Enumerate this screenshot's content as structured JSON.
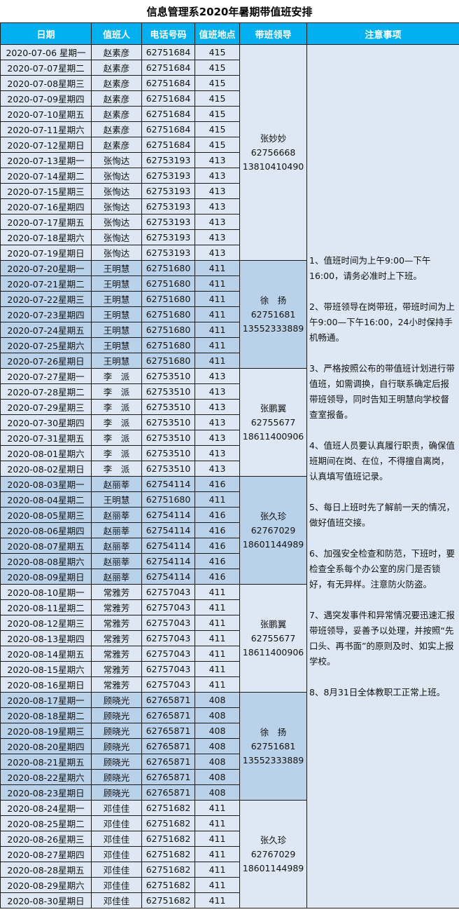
{
  "title": "信息管理系2020年暑期带值班安排",
  "headers": [
    "日期",
    "值班人",
    "电话号码",
    "值班地点",
    "带班领导",
    "注意事项"
  ],
  "notes": "1、值班时间为上午9:00—下午16:00，请务必准时上下班。\n\n2、带班领导在岗带班，带班时间为上午9:00—下午16:00，24小时保持手机畅通。\n\n3、严格按照公布的带值班计划进行带值班，如需调换，自行联系确定后报带班领导，同时告知王明慧向学校督查室报备。\n\n4、值班人员要认真履行职责，确保值班期间在岗、在位，不得擅自离岗，认真填写值班记录。\n\n5、每日上班时先了解前一天的情况，做好值班交接。\n\n6、加强安全检查和防范，下班时，要检查全系每个办公室的房门是否锁好，有无异样。注意防火防盗。\n\n7、遇突发事件和异常情况要迅速汇报带班领导，妥善予以处理，并按照“先口头、再书面”的原则及时、如实上报学校。\n\n8、8月31日全体教职工正常上班。",
  "colors": {
    "header": "#00b0f0",
    "light": "#dde8f4",
    "blue": "#b9d2ea"
  },
  "groups": [
    {
      "leader": {
        "name": "张妙妙",
        "phone": "62756668",
        "mobile": "13810410490"
      },
      "days": [
        [
          "2020-07-06 星期一",
          "赵素彦",
          "62751684",
          "415"
        ],
        [
          "2020-07-07星期二",
          "赵素彦",
          "62751684",
          "415"
        ],
        [
          "2020-07-08星期三",
          "赵素彦",
          "62751684",
          "415"
        ],
        [
          "2020-07-09星期四",
          "赵素彦",
          "62751684",
          "415"
        ],
        [
          "2020-07-10星期五",
          "赵素彦",
          "62751684",
          "415"
        ],
        [
          "2020-07-11星期六",
          "赵素彦",
          "62751684",
          "415"
        ],
        [
          "2020-07-12星期日",
          "赵素彦",
          "62751684",
          "415"
        ],
        [
          "2020-07-13星期一",
          "张恂达",
          "62753193",
          "413"
        ],
        [
          "2020-07-14星期二",
          "张恂达",
          "62753193",
          "413"
        ],
        [
          "2020-07-15星期三",
          "张恂达",
          "62753193",
          "413"
        ],
        [
          "2020-07-16星期四",
          "张恂达",
          "62753193",
          "413"
        ],
        [
          "2020-07-17星期五",
          "张恂达",
          "62753193",
          "413"
        ],
        [
          "2020-07-18星期六",
          "张恂达",
          "62753193",
          "413"
        ],
        [
          "2020-07-19星期日",
          "张恂达",
          "62753193",
          "413"
        ]
      ]
    },
    {
      "leader": {
        "name": "徐　扬",
        "phone": "62751681",
        "mobile": "13552333889"
      },
      "days": [
        [
          "2020-07-20星期一",
          "王明慧",
          "62751680",
          "411"
        ],
        [
          "2020-07-21星期二",
          "王明慧",
          "62751680",
          "411"
        ],
        [
          "2020-07-22星期三",
          "王明慧",
          "62751680",
          "411"
        ],
        [
          "2020-07-23星期四",
          "王明慧",
          "62751680",
          "411"
        ],
        [
          "2020-07-24星期五",
          "王明慧",
          "62751680",
          "411"
        ],
        [
          "2020-07-25星期六",
          "王明慧",
          "62751680",
          "411"
        ],
        [
          "2020-07-26星期日",
          "王明慧",
          "62751680",
          "411"
        ]
      ]
    },
    {
      "leader": {
        "name": "张鹏翼",
        "phone": "62755677",
        "mobile": "18611400906"
      },
      "days": [
        [
          "2020-07-27星期一",
          "李　派",
          "62753510",
          "413"
        ],
        [
          "2020-07-28星期二",
          "李　派",
          "62753510",
          "413"
        ],
        [
          "2020-07-29星期三",
          "李　派",
          "62753510",
          "413"
        ],
        [
          "2020-07-30星期四",
          "李　派",
          "62753510",
          "413"
        ],
        [
          "2020-07-31星期五",
          "李　派",
          "62753510",
          "413"
        ],
        [
          "2020-08-01星期六",
          "李　派",
          "62753510",
          "413"
        ],
        [
          "2020-08-02星期日",
          "李　派",
          "62753510",
          "413"
        ]
      ]
    },
    {
      "leader": {
        "name": "张久珍",
        "phone": "62767029",
        "mobile": "18601144989"
      },
      "days": [
        [
          "2020-08-03星期一",
          "赵丽莘",
          "62754114",
          "416"
        ],
        [
          "2020-08-04星期二",
          "王明慧",
          "62751680",
          "411"
        ],
        [
          "2020-08-05星期三",
          "赵丽莘",
          "62754114",
          "416"
        ],
        [
          "2020-08-06星期四",
          "赵丽莘",
          "62754114",
          "416"
        ],
        [
          "2020-08-07星期五",
          "赵丽莘",
          "62754114",
          "416"
        ],
        [
          "2020-08-08星期六",
          "赵丽莘",
          "62754114",
          "416"
        ],
        [
          "2020-08-09星期日",
          "赵丽莘",
          "62754114",
          "416"
        ]
      ]
    },
    {
      "leader": {
        "name": "张鹏翼",
        "phone": "62755677",
        "mobile": "18611400906"
      },
      "days": [
        [
          "2020-08-10星期一",
          "常雅芳",
          "62757043",
          "411"
        ],
        [
          "2020-08-11星期二",
          "常雅芳",
          "62757043",
          "411"
        ],
        [
          "2020-08-12星期三",
          "常雅芳",
          "62757043",
          "411"
        ],
        [
          "2020-08-13星期四",
          "常雅芳",
          "62757043",
          "411"
        ],
        [
          "2020-08-14星期五",
          "常雅芳",
          "62757043",
          "411"
        ],
        [
          "2020-08-15星期六",
          "常雅芳",
          "62757043",
          "411"
        ],
        [
          "2020-08-16星期日",
          "常雅芳",
          "62757043",
          "411"
        ]
      ]
    },
    {
      "leader": {
        "name": "徐　扬",
        "phone": "62751681",
        "mobile": "13552333889"
      },
      "days": [
        [
          "2020-08-17星期一",
          "顾晓光",
          "62765871",
          "408"
        ],
        [
          "2020-08-18星期二",
          "顾晓光",
          "62765871",
          "408"
        ],
        [
          "2020-08-19星期三",
          "顾晓光",
          "62765871",
          "408"
        ],
        [
          "2020-08-20星期四",
          "顾晓光",
          "62765871",
          "408"
        ],
        [
          "2020-08-21星期五",
          "顾晓光",
          "62765871",
          "408"
        ],
        [
          "2020-08-22星期六",
          "顾晓光",
          "62765871",
          "408"
        ],
        [
          "2020-08-23星期日",
          "顾晓光",
          "62765871",
          "408"
        ]
      ]
    },
    {
      "leader": {
        "name": "张久珍",
        "phone": "62767029",
        "mobile": "18601144989"
      },
      "days": [
        [
          "2020-08-24星期一",
          "邓佳佳",
          "62751682",
          "411"
        ],
        [
          "2020-08-25星期二",
          "邓佳佳",
          "62751682",
          "411"
        ],
        [
          "2020-08-26星期三",
          "邓佳佳",
          "62751682",
          "411"
        ],
        [
          "2020-08-27星期四",
          "邓佳佳",
          "62751682",
          "411"
        ],
        [
          "2020-08-28星期五",
          "邓佳佳",
          "62751682",
          "411"
        ],
        [
          "2020-08-29星期六",
          "邓佳佳",
          "62751682",
          "411"
        ],
        [
          "2020-08-30星期日",
          "邓佳佳",
          "62751682",
          "411"
        ]
      ]
    }
  ]
}
